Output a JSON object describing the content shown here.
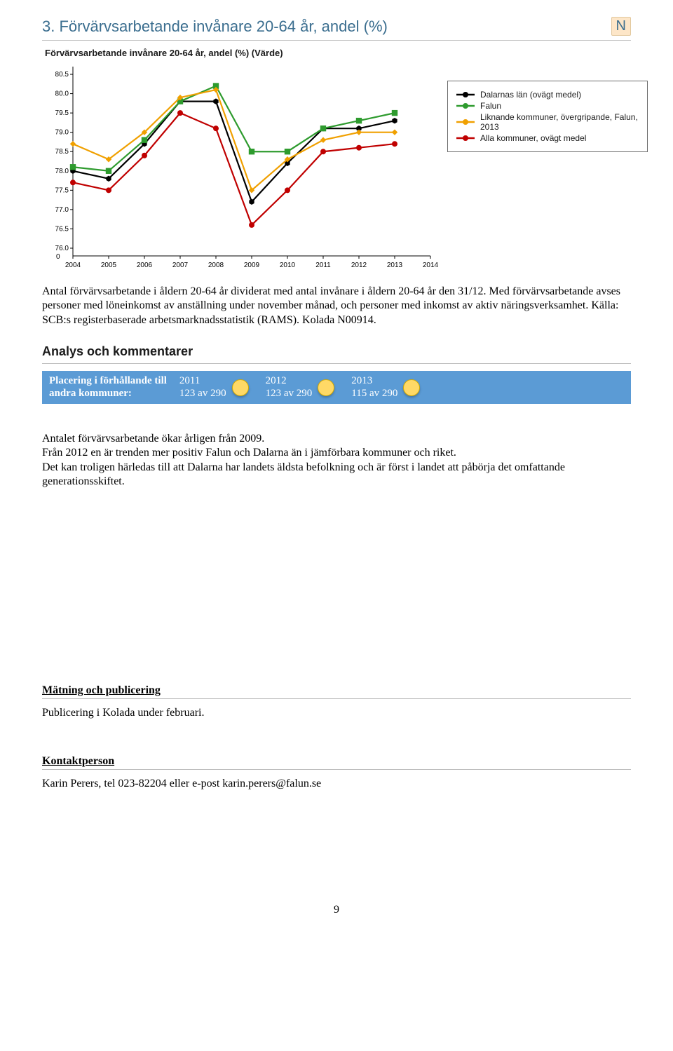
{
  "heading": {
    "number_title": "3.  Förvärvsarbetande invånare 20-64 år, andel (%)",
    "badge": "N"
  },
  "chart": {
    "title": "Förvärvsarbetande invånare 20-64 år, andel (%) (Värde)",
    "type": "line",
    "x_labels": [
      "2004",
      "2005",
      "2006",
      "2007",
      "2008",
      "2009",
      "2010",
      "2011",
      "2012",
      "2013",
      "2014"
    ],
    "y_ticks": [
      76.0,
      76.5,
      77.0,
      77.5,
      78.0,
      78.5,
      79.0,
      79.5,
      80.0,
      80.5
    ],
    "y_axis_zero_indicator": "0 ↑",
    "ylim": [
      75.8,
      80.7
    ],
    "xlim": [
      2004,
      2014
    ],
    "background_color": "#ffffff",
    "axis_color": "#000000",
    "grid": false,
    "series": [
      {
        "name": "Dalarnas län (ovägt medel)",
        "color": "#000000",
        "marker": "hexagon",
        "data": [
          [
            2004,
            78.0
          ],
          [
            2005,
            77.8
          ],
          [
            2006,
            78.7
          ],
          [
            2007,
            79.8
          ],
          [
            2008,
            79.8
          ],
          [
            2009,
            77.2
          ],
          [
            2010,
            78.2
          ],
          [
            2011,
            79.1
          ],
          [
            2012,
            79.1
          ],
          [
            2013,
            79.3
          ]
        ]
      },
      {
        "name": "Falun",
        "color": "#2e9b2e",
        "marker": "square",
        "data": [
          [
            2004,
            78.1
          ],
          [
            2005,
            78.0
          ],
          [
            2006,
            78.8
          ],
          [
            2007,
            79.8
          ],
          [
            2008,
            80.2
          ],
          [
            2009,
            78.5
          ],
          [
            2010,
            78.5
          ],
          [
            2011,
            79.1
          ],
          [
            2012,
            79.3
          ],
          [
            2013,
            79.5
          ]
        ]
      },
      {
        "name": "Liknande kommuner, övergripande, Falun, 2013",
        "color": "#f0a000",
        "marker": "diamond",
        "data": [
          [
            2004,
            78.7
          ],
          [
            2005,
            78.3
          ],
          [
            2006,
            79.0
          ],
          [
            2007,
            79.9
          ],
          [
            2008,
            80.1
          ],
          [
            2009,
            77.5
          ],
          [
            2010,
            78.3
          ],
          [
            2011,
            78.8
          ],
          [
            2012,
            79.0
          ],
          [
            2013,
            79.0
          ]
        ]
      },
      {
        "name": "Alla kommuner, ovägt medel",
        "color": "#c00000",
        "marker": "circle",
        "data": [
          [
            2004,
            77.7
          ],
          [
            2005,
            77.5
          ],
          [
            2006,
            78.4
          ],
          [
            2007,
            79.5
          ],
          [
            2008,
            79.1
          ],
          [
            2009,
            76.6
          ],
          [
            2010,
            77.5
          ],
          [
            2011,
            78.5
          ],
          [
            2012,
            78.6
          ],
          [
            2013,
            78.7
          ]
        ]
      }
    ],
    "legend_items": [
      {
        "label": "Dalarnas län (ovägt medel)",
        "color": "#000000"
      },
      {
        "label": "Falun",
        "color": "#2e9b2e"
      },
      {
        "label": "Liknande kommuner, övergripande, Falun, 2013",
        "color": "#f0a000"
      },
      {
        "label": "Alla kommuner, ovägt medel",
        "color": "#c00000"
      }
    ]
  },
  "description": "Antal förvärvsarbetande i åldern 20-64 år dividerat med antal invånare i åldern 20-64 år den 31/12. Med förvärvsarbetande avses personer med löneinkomst av anställning under november månad, och personer med inkomst av aktiv näringsverksamhet. Källa: SCB:s registerbaserade arbetsmarknadsstatistik (RAMS). Kolada N00914.",
  "analysis_heading": "Analys och kommentarer",
  "ranking": {
    "label_line1": "Placering i förhållande till",
    "label_line2": "andra kommuner:",
    "bar_color": "#5b9bd5",
    "dot_color": "#ffd966",
    "years": [
      {
        "year": "2011",
        "value": "123 av 290"
      },
      {
        "year": "2012",
        "value": "123 av 290"
      },
      {
        "year": "2013",
        "value": "115 av 290"
      }
    ]
  },
  "analysis_body": "Antalet förvärvsarbetande ökar årligen från 2009.\nFrån 2012 en är trenden mer positiv Falun och Dalarna än i jämförbara kommuner och riket.\nDet kan troligen härledas till att Dalarna har landets äldsta befolkning och är först i landet att påbörja det omfattande generationsskiftet.",
  "measurement_heading": "Mätning och publicering",
  "measurement_body": "Publicering i Kolada under februari.",
  "contact_heading": "Kontaktperson",
  "contact_body": "Karin Perers, tel 023-82204 eller e-post karin.perers@falun.se",
  "page_number": "9"
}
